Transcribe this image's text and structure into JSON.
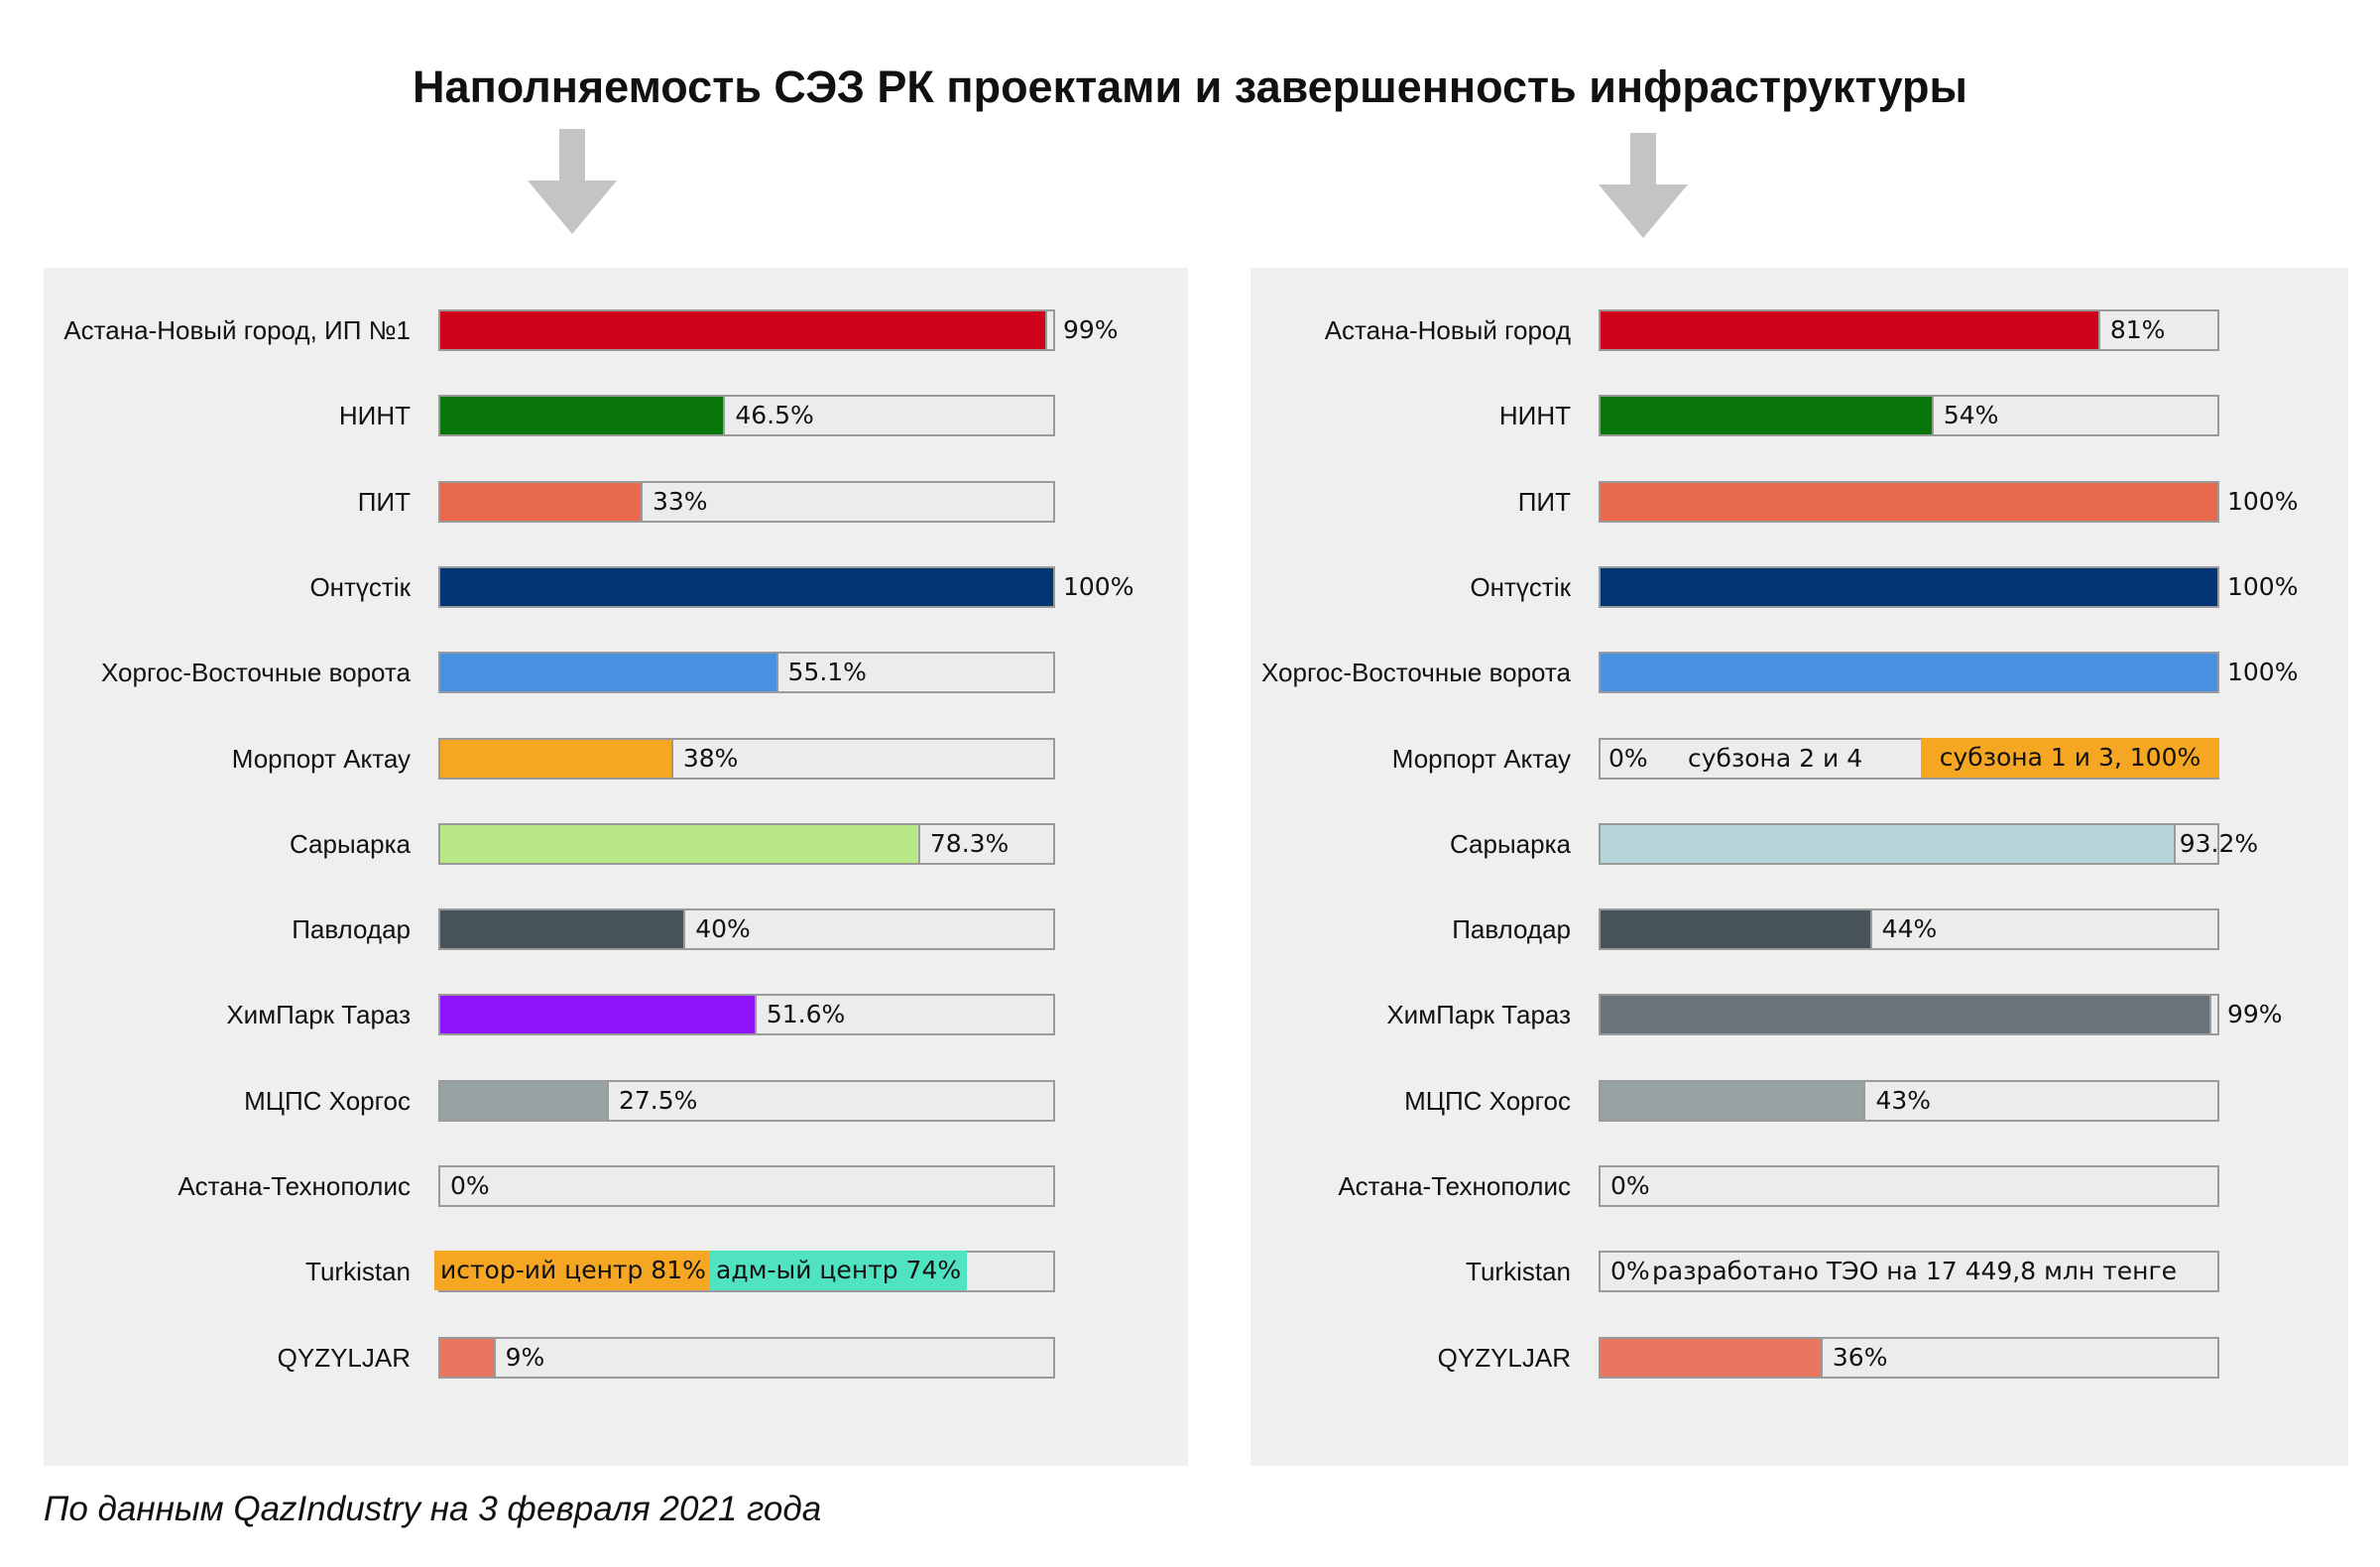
{
  "title": "Наполняемость СЭЗ РК проектами и завершенность инфраструктуры",
  "source": "По данным QazIndustry на 3 февраля 2021 года",
  "colors": {
    "arrow": "#c4c4c4",
    "panel": "#efefef",
    "track_border": "#9a9a9a"
  },
  "chart_data": [
    {
      "type": "bar",
      "orientation": "horizontal",
      "xlim": [
        0,
        100
      ],
      "grid": false,
      "bars": [
        {
          "category": "Астана-Новый город, ИП №1",
          "value": 99,
          "label": "99%",
          "color": "#d0011b"
        },
        {
          "category": "НИНТ",
          "value": 46.5,
          "label": "46.5%",
          "color": "#08760b"
        },
        {
          "category": "ПИТ",
          "value": 33,
          "label": "33%",
          "color": "#e9694f"
        },
        {
          "category": "Онтүстік",
          "value": 100,
          "label": "100%",
          "color": "#003473"
        },
        {
          "category": "Хоргос-Восточные ворота",
          "value": 55.1,
          "label": "55.1%",
          "color": "#4a90e2"
        },
        {
          "category": "Морпорт Актау",
          "value": 38,
          "label": "38%",
          "color": "#f5a623"
        },
        {
          "category": "Сарыарка",
          "value": 78.3,
          "label": "78.3%",
          "color": "#b8e986"
        },
        {
          "category": "Павлодар",
          "value": 40,
          "label": "40%",
          "color": "#465359"
        },
        {
          "category": "ХимПарк Тараз",
          "value": 51.6,
          "label": "51.6%",
          "color": "#9013fe"
        },
        {
          "category": "МЦПС Хоргос",
          "value": 27.5,
          "label": "27.5%",
          "color": "#97a3a3"
        },
        {
          "category": "Астана-Технополис",
          "value": 0,
          "label": "0%",
          "color": "#97a3a3"
        },
        {
          "category": "Turkistan",
          "segments": [
            {
              "label": "истор-ий центр 81%",
              "value": 81,
              "color": "#f5a623"
            },
            {
              "label": "адм-ый центр 74%",
              "value": 74,
              "color": "#50e3c2"
            }
          ]
        },
        {
          "category": "QYZYLJAR",
          "value": 9,
          "label": "9%",
          "color": "#e9775f"
        }
      ]
    },
    {
      "type": "bar",
      "orientation": "horizontal",
      "xlim": [
        0,
        100
      ],
      "grid": false,
      "bars": [
        {
          "category": "Астана-Новый город",
          "value": 81,
          "label": "81%",
          "color": "#d0011b"
        },
        {
          "category": "НИНТ",
          "value": 54,
          "label": "54%",
          "color": "#08760b"
        },
        {
          "category": "ПИТ",
          "value": 100,
          "label": "100%",
          "color": "#e9694f"
        },
        {
          "category": "Онтүстік",
          "value": 100,
          "label": "100%",
          "color": "#003473"
        },
        {
          "category": "Хоргос-Восточные ворота",
          "value": 100,
          "label": "100%",
          "color": "#4a90e2"
        },
        {
          "category": "Морпорт Актау",
          "segments": [
            {
              "label": "0%",
              "value": 0,
              "color": "#ececec"
            },
            {
              "label": "субзона 2 и 4",
              "value": 0,
              "color": "#ececec"
            },
            {
              "label": "субзона 1 и 3, 100%",
              "value": 100,
              "color": "#f5a623"
            }
          ]
        },
        {
          "category": "Сарыарка",
          "value": 93.2,
          "label": "93.2%",
          "color": "#b9d5dc"
        },
        {
          "category": "Павлодар",
          "value": 44,
          "label": "44%",
          "color": "#465359"
        },
        {
          "category": "ХимПарк Тараз",
          "value": 99,
          "label": "99%",
          "color": "#687479"
        },
        {
          "category": "МЦПС Хоргос",
          "value": 43,
          "label": "43%",
          "color": "#97a3a3"
        },
        {
          "category": "Астана-Технополис",
          "value": 0,
          "label": "0%",
          "color": "#97a3a3"
        },
        {
          "category": "Turkistan",
          "value": 0,
          "label": "0%",
          "note": "разработано ТЭО на 17 449,8 млн тенге",
          "color": "#ececec"
        },
        {
          "category": "QYZYLJAR",
          "value": 36,
          "label": "36%",
          "color": "#e9775f"
        }
      ]
    }
  ]
}
